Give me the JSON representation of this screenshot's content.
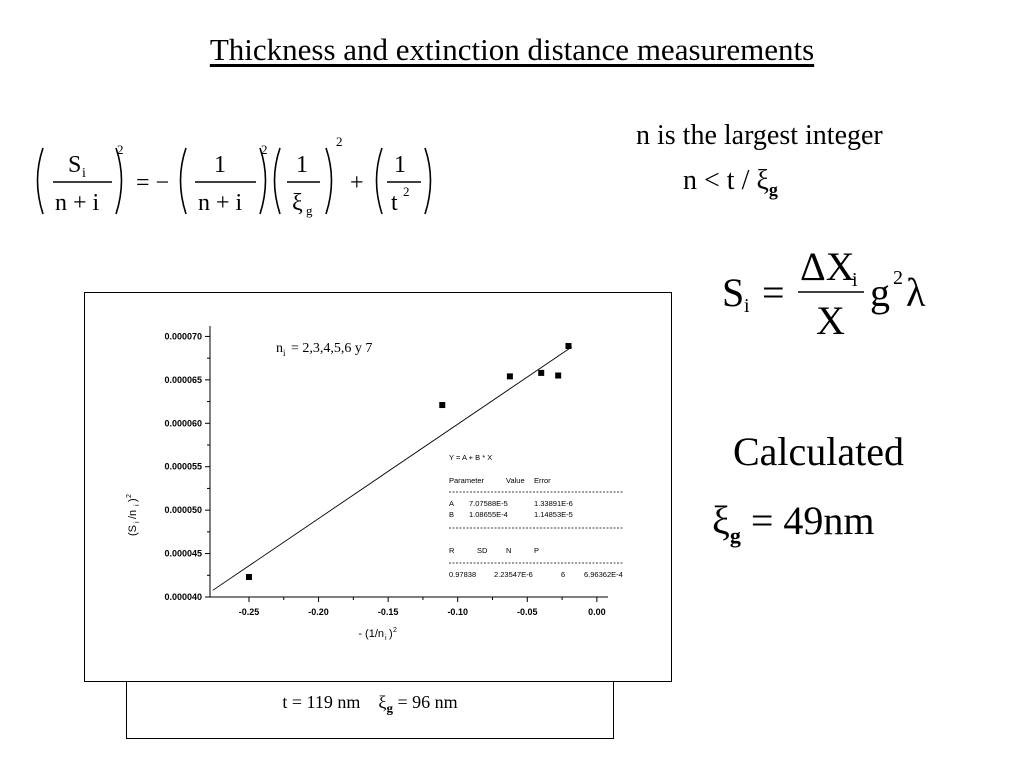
{
  "slide": {
    "title": "Thickness and extinction distance measurements",
    "note_line1": "n is the largest integer",
    "note_line2_prefix": "n < t / ξ",
    "note_line2_sub": "g",
    "calculated_label": "Calculated",
    "result_symbol": "ξ",
    "result_sub": "g",
    "result_value": "= 49nm"
  },
  "equation1": {
    "lhs_num": "S",
    "lhs_num_sub": "i",
    "lhs_den": "n + i",
    "eq_sign": "= −",
    "t1_num": "1",
    "t1_den": "n + i",
    "t2_num": "1",
    "t2_den": "ξ",
    "t2_den_sub": "g",
    "plus": "+",
    "t3_num": "1",
    "t3_den": "t",
    "power": "2"
  },
  "equation2": {
    "lhs": "S",
    "lhs_sub": "i",
    "eq": "=",
    "num": "ΔX",
    "num_sub": "i",
    "den": "X",
    "tail": "g",
    "tail_sup": "2",
    "lambda": "λ"
  },
  "caption": {
    "text_t": "t = 119 nm",
    "xi": "ξ",
    "xi_sub": "g",
    "text_xi": "= 96 nm"
  },
  "chart_data": {
    "type": "scatter",
    "xlabel": "- (1/n",
    "xlabel_sub": "i",
    "xlabel_tail": ")",
    "xlabel_sup": "2",
    "ylabel": "(S",
    "ylabel_sub": "i",
    "ylabel_mid": "/n",
    "ylabel_sub2": "i",
    "ylabel_tail": ")",
    "ylabel_sup": "2",
    "xlim": [
      -0.278,
      0.008
    ],
    "ylim": [
      4e-05,
      7.12e-05
    ],
    "x_ticks": [
      -0.25,
      -0.2,
      -0.15,
      -0.1,
      -0.05,
      0.0
    ],
    "x_tick_labels": [
      "-0.25",
      "-0.20",
      "-0.15",
      "-0.10",
      "-0.05",
      "0.00"
    ],
    "y_ticks": [
      4e-05,
      4.5e-05,
      5e-05,
      5.5e-05,
      6e-05,
      6.5e-05,
      7e-05
    ],
    "y_tick_labels": [
      "0.000040",
      "0.000045",
      "0.000050",
      "0.000055",
      "0.000060",
      "0.000065",
      "0.000070"
    ],
    "points": [
      {
        "x": -0.25,
        "y": 4.23e-05
      },
      {
        "x": -0.1111,
        "y": 6.21e-05
      },
      {
        "x": -0.0625,
        "y": 6.54e-05
      },
      {
        "x": -0.04,
        "y": 6.58e-05
      },
      {
        "x": -0.0278,
        "y": 6.55e-05
      },
      {
        "x": -0.0204,
        "y": 6.89e-05
      }
    ],
    "fit_line": {
      "A": 7.07588e-05,
      "B": 0.000108655
    },
    "annotation_label": "n",
    "annotation_sub": "i",
    "annotation_value": "= 2,3,4,5,6 y 7",
    "fit_table": {
      "equation": "Y = A + B * X",
      "headers": [
        "Parameter",
        "Value",
        "Error"
      ],
      "rows": [
        [
          "A",
          "7.07588E-5",
          "1.33891E-6"
        ],
        [
          "B",
          "1.08655E-4",
          "1.14853E-5"
        ]
      ],
      "stat_headers": [
        "R",
        "SD",
        "N",
        "P"
      ],
      "stat_values": [
        "0.97838",
        "2.23547E-6",
        "6",
        "6.96362E-4"
      ]
    }
  }
}
